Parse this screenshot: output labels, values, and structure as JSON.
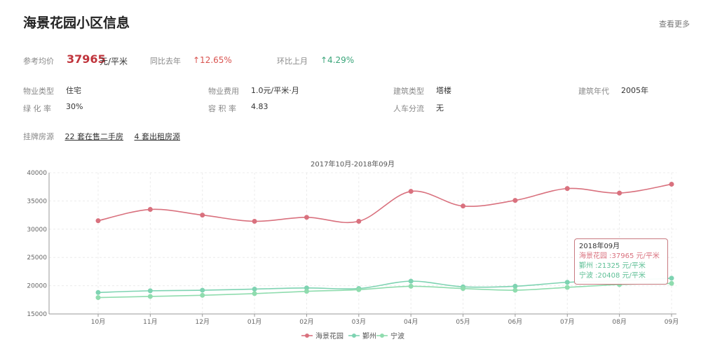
{
  "header": {
    "title": "海景花园小区信息",
    "more_label": "查看更多"
  },
  "price": {
    "label": "参考均价",
    "value": "37965",
    "unit": "元/平米",
    "yoy_label": "同比去年",
    "yoy_value": "↑12.65%",
    "mom_label": "环比上月",
    "mom_value": "↑4.29%"
  },
  "attributes": [
    {
      "label": "物业类型",
      "value": "住宅"
    },
    {
      "label": "物业费用",
      "value": "1.0元/平米·月"
    },
    {
      "label": "建筑类型",
      "value": "塔楼"
    },
    {
      "label": "建筑年代",
      "value": "2005年"
    },
    {
      "label": "绿 化 率",
      "value": "30%"
    },
    {
      "label": "容 积 率",
      "value": "4.83"
    },
    {
      "label": "人车分流",
      "value": "无"
    }
  ],
  "listing": {
    "label": "挂牌房源",
    "sale": "22 套在售二手房",
    "rent": "4 套出租房源"
  },
  "chart_data": {
    "type": "line",
    "title": "2017年10月-2018年09月",
    "categories": [
      "10月",
      "11月",
      "12月",
      "01月",
      "02月",
      "03月",
      "04月",
      "05月",
      "06月",
      "07月",
      "08月",
      "09月"
    ],
    "ylim": [
      15000,
      40000
    ],
    "yticks": [
      40000,
      35000,
      30000,
      25000,
      20000,
      15000
    ],
    "grid": true,
    "legend_position": "bottom",
    "series": [
      {
        "name": "海景花园",
        "color": "#d9717e",
        "values": [
          31500,
          33500,
          32500,
          31400,
          32100,
          31400,
          36700,
          34100,
          35100,
          37200,
          36400,
          37965
        ]
      },
      {
        "name": "鄞州",
        "color": "#7ed3b2",
        "values": [
          18800,
          19100,
          19200,
          19400,
          19600,
          19500,
          20800,
          19800,
          19900,
          20600,
          20900,
          21325
        ]
      },
      {
        "name": "宁波",
        "color": "#8fdcae",
        "values": [
          17900,
          18100,
          18300,
          18600,
          19000,
          19300,
          19900,
          19500,
          19200,
          19700,
          20200,
          20408
        ]
      }
    ]
  },
  "tooltip": {
    "title": "2018年09月",
    "lines": [
      "海景花园 :37965 元/平米",
      "鄞州 :21325 元/平米",
      "宁波 :20408 元/平米"
    ]
  }
}
